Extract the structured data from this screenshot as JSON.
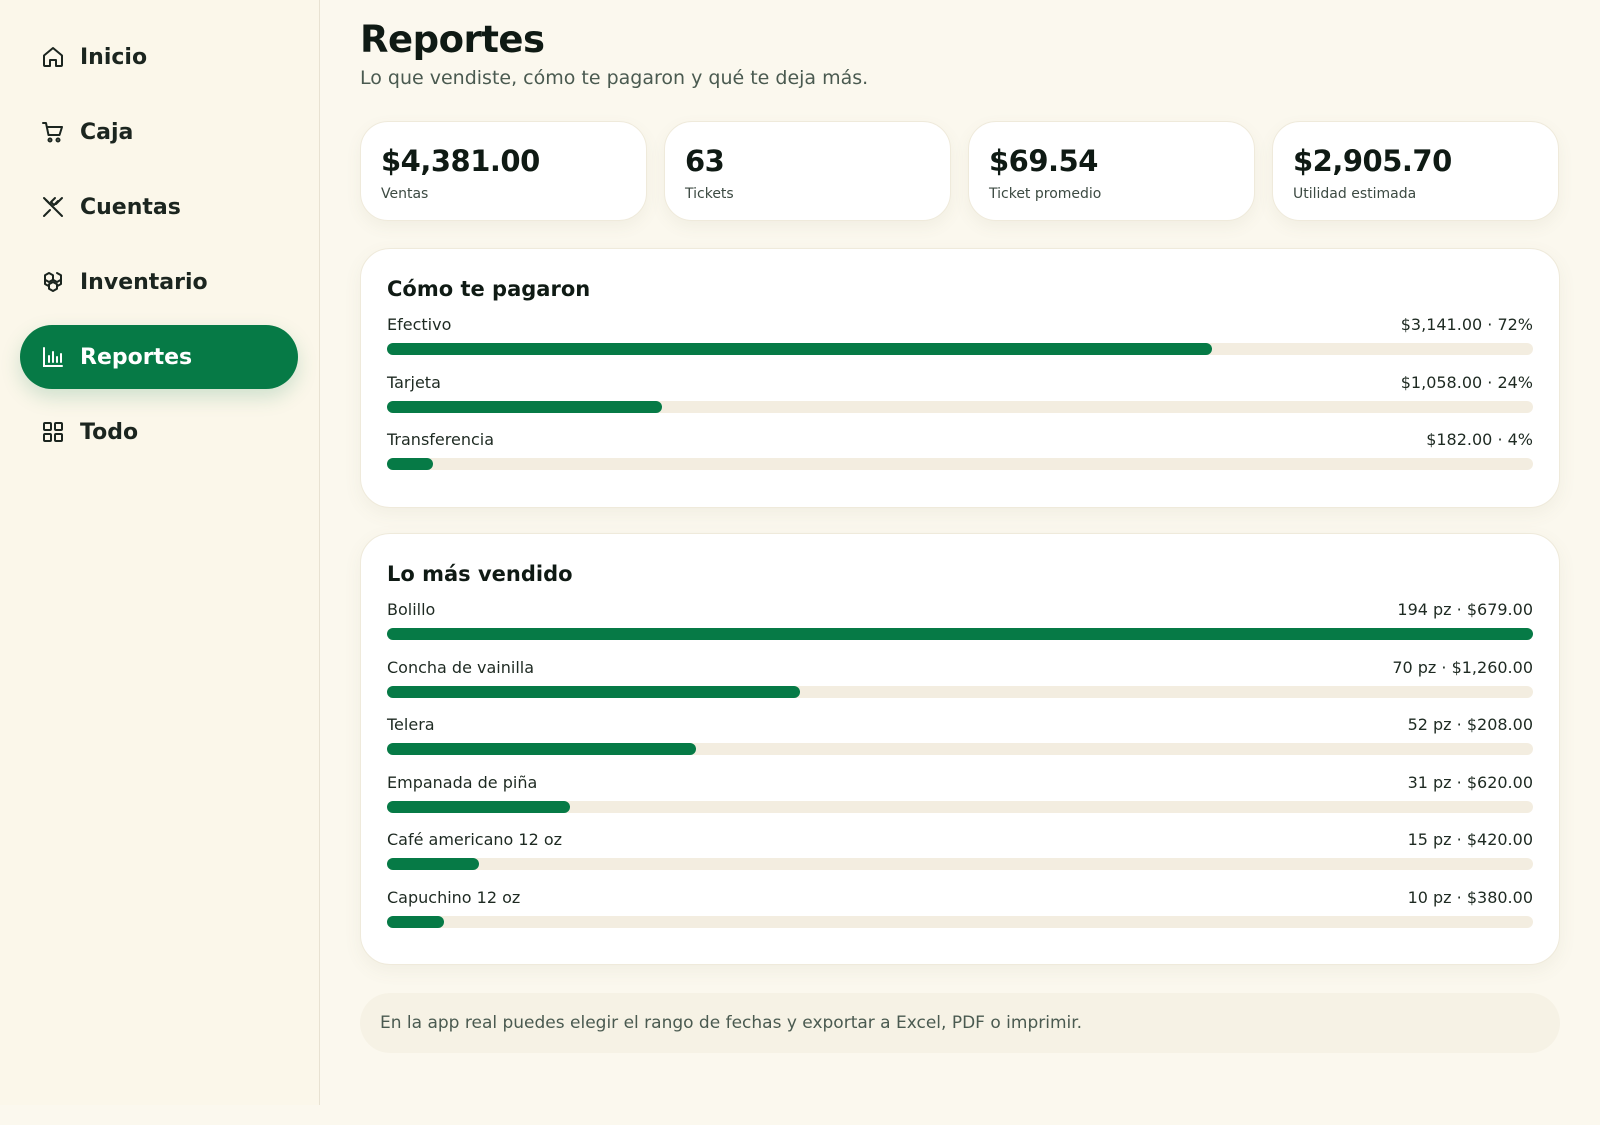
{
  "sidebar": {
    "items": [
      {
        "label": "Inicio",
        "icon": "home-icon"
      },
      {
        "label": "Caja",
        "icon": "cart-icon"
      },
      {
        "label": "Cuentas",
        "icon": "utensils-crossed-icon"
      },
      {
        "label": "Inventario",
        "icon": "boxes-icon"
      },
      {
        "label": "Reportes",
        "icon": "bar-chart-icon",
        "active": true
      },
      {
        "label": "Todo",
        "icon": "grid-icon"
      }
    ]
  },
  "header": {
    "title": "Reportes",
    "subtitle": "Lo que vendiste, cómo te pagaron y qué te deja más."
  },
  "stats": [
    {
      "value": "$4,381.00",
      "label": "Ventas"
    },
    {
      "value": "63",
      "label": "Tickets"
    },
    {
      "value": "$69.54",
      "label": "Ticket promedio"
    },
    {
      "value": "$2,905.70",
      "label": "Utilidad estimada"
    }
  ],
  "payments": {
    "title": "Cómo te pagaron",
    "rows": [
      {
        "label": "Efectivo",
        "detail": "$3,141.00 · 72%",
        "fraction": 0.72
      },
      {
        "label": "Tarjeta",
        "detail": "$1,058.00 · 24%",
        "fraction": 0.24
      },
      {
        "label": "Transferencia",
        "detail": "$182.00 · 4%",
        "fraction": 0.04
      }
    ]
  },
  "top_products": {
    "title": "Lo más vendido",
    "rows": [
      {
        "label": "Bolillo",
        "detail": "194 pz · $679.00",
        "fraction": 1.0
      },
      {
        "label": "Concha de vainilla",
        "detail": "70 pz · $1,260.00",
        "fraction": 0.36
      },
      {
        "label": "Telera",
        "detail": "52 pz · $208.00",
        "fraction": 0.27
      },
      {
        "label": "Empanada de piña",
        "detail": "31 pz · $620.00",
        "fraction": 0.16
      },
      {
        "label": "Café americano 12 oz",
        "detail": "15 pz · $420.00",
        "fraction": 0.08
      },
      {
        "label": "Capuchino 12 oz",
        "detail": "10 pz · $380.00",
        "fraction": 0.05
      }
    ]
  },
  "note": "En la app real puedes elegir el rango de fechas y exportar a Excel, PDF o imprimir.",
  "colors": {
    "accent": "#067a46",
    "track": "#f3ede0",
    "background": "#fbf8ee"
  }
}
